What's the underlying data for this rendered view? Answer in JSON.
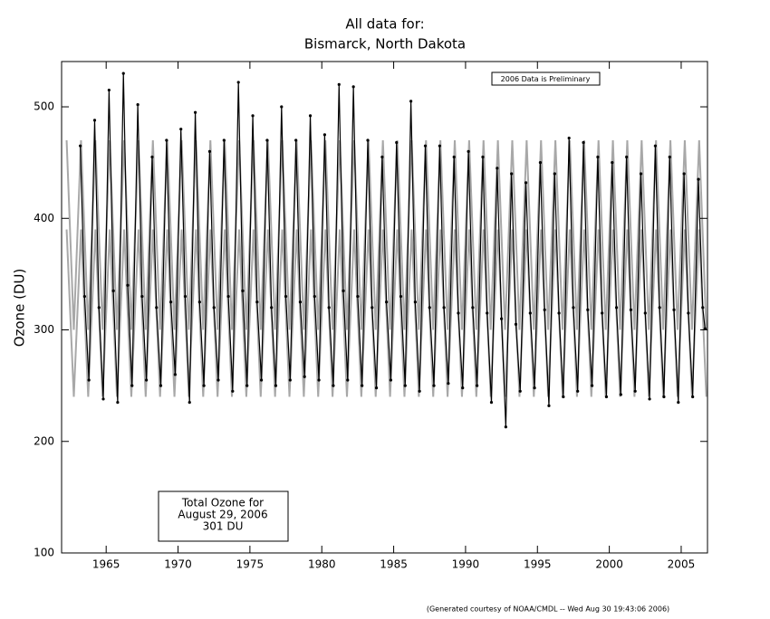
{
  "chart_data": {
    "type": "line",
    "title": "All data for:",
    "subtitle": "Bismarck, North Dakota",
    "y_label": "Ozone (DU)",
    "annotation": "2006 Data is Preliminary",
    "info_box": [
      "Total Ozone for",
      "August 29, 2006",
      "301 DU"
    ],
    "footer": "(Generated courtesy of NOAA/CMDL -- Wed Aug 30 19:43:06 2006)",
    "xlim": [
      1961.9,
      2006.83
    ],
    "ylim": [
      100,
      540.6
    ],
    "xticks": [
      1965,
      1970,
      1975,
      1980,
      1985,
      1990,
      1995,
      2000,
      2005
    ],
    "yticks": [
      100,
      200,
      300,
      400,
      500
    ],
    "grid": false,
    "series": [
      {
        "name": "Climatology upper",
        "color": "#a8a8a8",
        "markers": false,
        "x": [
          1962.25,
          1962.75,
          1963.25,
          1963.75,
          1964.25,
          1964.75,
          1965.25,
          1965.75,
          1966.25,
          1966.75,
          1967.25,
          1967.75,
          1968.25,
          1968.75,
          1969.25,
          1969.75,
          1970.25,
          1970.75,
          1971.25,
          1971.75,
          1972.25,
          1972.75,
          1973.25,
          1973.75,
          1974.25,
          1974.75,
          1975.25,
          1975.75,
          1976.25,
          1976.75,
          1977.25,
          1977.75,
          1978.25,
          1978.75,
          1979.25,
          1979.75,
          1980.25,
          1980.75,
          1981.25,
          1981.75,
          1982.25,
          1982.75,
          1983.25,
          1983.75,
          1984.25,
          1984.75,
          1985.25,
          1985.75,
          1986.25,
          1986.75,
          1987.25,
          1987.75,
          1988.25,
          1988.75,
          1989.25,
          1989.75,
          1990.25,
          1990.75,
          1991.25,
          1991.75,
          1992.25,
          1992.75,
          1993.25,
          1993.75,
          1994.25,
          1994.75,
          1995.25,
          1995.75,
          1996.25,
          1996.75,
          1997.25,
          1997.75,
          1998.25,
          1998.75,
          1999.25,
          1999.75,
          2000.25,
          2000.75,
          2001.25,
          2001.75,
          2002.25,
          2002.75,
          2003.25,
          2003.75,
          2004.25,
          2004.75,
          2005.25,
          2005.75,
          2006.25,
          2006.75
        ],
        "values": [
          470,
          300,
          470,
          300,
          470,
          300,
          470,
          300,
          470,
          300,
          470,
          300,
          470,
          300,
          470,
          300,
          470,
          300,
          470,
          300,
          470,
          300,
          470,
          300,
          470,
          300,
          470,
          300,
          470,
          300,
          470,
          300,
          470,
          300,
          470,
          300,
          470,
          300,
          470,
          300,
          470,
          300,
          470,
          300,
          470,
          300,
          470,
          300,
          470,
          300,
          470,
          300,
          470,
          300,
          470,
          300,
          470,
          300,
          470,
          300,
          470,
          300,
          470,
          300,
          470,
          300,
          470,
          300,
          470,
          300,
          470,
          300,
          470,
          300,
          470,
          300,
          470,
          300,
          470,
          300,
          470,
          300,
          470,
          300,
          470,
          300,
          470,
          300,
          470,
          300
        ]
      },
      {
        "name": "Climatology lower",
        "color": "#a8a8a8",
        "markers": false,
        "x": [
          1962.25,
          1962.75,
          1963.25,
          1963.75,
          1964.25,
          1964.75,
          1965.25,
          1965.75,
          1966.25,
          1966.75,
          1967.25,
          1967.75,
          1968.25,
          1968.75,
          1969.25,
          1969.75,
          1970.25,
          1970.75,
          1971.25,
          1971.75,
          1972.25,
          1972.75,
          1973.25,
          1973.75,
          1974.25,
          1974.75,
          1975.25,
          1975.75,
          1976.25,
          1976.75,
          1977.25,
          1977.75,
          1978.25,
          1978.75,
          1979.25,
          1979.75,
          1980.25,
          1980.75,
          1981.25,
          1981.75,
          1982.25,
          1982.75,
          1983.25,
          1983.75,
          1984.25,
          1984.75,
          1985.25,
          1985.75,
          1986.25,
          1986.75,
          1987.25,
          1987.75,
          1988.25,
          1988.75,
          1989.25,
          1989.75,
          1990.25,
          1990.75,
          1991.25,
          1991.75,
          1992.25,
          1992.75,
          1993.25,
          1993.75,
          1994.25,
          1994.75,
          1995.25,
          1995.75,
          1996.25,
          1996.75,
          1997.25,
          1997.75,
          1998.25,
          1998.75,
          1999.25,
          1999.75,
          2000.25,
          2000.75,
          2001.25,
          2001.75,
          2002.25,
          2002.75,
          2003.25,
          2003.75,
          2004.25,
          2004.75,
          2005.25,
          2005.75,
          2006.25,
          2006.75
        ],
        "values": [
          390,
          240,
          390,
          240,
          390,
          240,
          390,
          240,
          390,
          240,
          390,
          240,
          390,
          240,
          390,
          240,
          390,
          240,
          390,
          240,
          390,
          240,
          390,
          240,
          390,
          240,
          390,
          240,
          390,
          240,
          390,
          240,
          390,
          240,
          390,
          240,
          390,
          240,
          390,
          240,
          390,
          240,
          390,
          240,
          390,
          240,
          390,
          240,
          390,
          240,
          390,
          240,
          390,
          240,
          390,
          240,
          390,
          240,
          390,
          240,
          390,
          240,
          390,
          240,
          390,
          240,
          390,
          240,
          390,
          240,
          390,
          240,
          390,
          240,
          390,
          240,
          390,
          240,
          390,
          240,
          390,
          240,
          390,
          240,
          390,
          240,
          390,
          240,
          390,
          240
        ]
      },
      {
        "name": "Total ozone",
        "color": "#000000",
        "markers": true,
        "x": [
          1963.2,
          1963.5,
          1963.8,
          1964.2,
          1964.5,
          1964.8,
          1965.2,
          1965.5,
          1965.8,
          1966.2,
          1966.5,
          1966.8,
          1967.2,
          1967.5,
          1967.8,
          1968.2,
          1968.5,
          1968.8,
          1969.2,
          1969.5,
          1969.8,
          1970.2,
          1970.5,
          1970.8,
          1971.2,
          1971.5,
          1971.8,
          1972.2,
          1972.5,
          1972.8,
          1973.2,
          1973.5,
          1973.8,
          1974.2,
          1974.5,
          1974.8,
          1975.2,
          1975.5,
          1975.8,
          1976.2,
          1976.5,
          1976.8,
          1977.2,
          1977.5,
          1977.8,
          1978.2,
          1978.5,
          1978.8,
          1979.2,
          1979.5,
          1979.8,
          1980.2,
          1980.5,
          1980.8,
          1981.2,
          1981.5,
          1981.8,
          1982.2,
          1982.5,
          1982.8,
          1983.2,
          1983.5,
          1983.8,
          1984.2,
          1984.5,
          1984.8,
          1985.2,
          1985.5,
          1985.8,
          1986.2,
          1986.5,
          1986.8,
          1987.2,
          1987.5,
          1987.8,
          1988.2,
          1988.5,
          1988.8,
          1989.2,
          1989.5,
          1989.8,
          1990.2,
          1990.5,
          1990.8,
          1991.2,
          1991.5,
          1991.8,
          1992.2,
          1992.5,
          1992.8,
          1993.2,
          1993.5,
          1993.8,
          1994.2,
          1994.5,
          1994.8,
          1995.2,
          1995.5,
          1995.8,
          1996.2,
          1996.5,
          1996.8,
          1997.2,
          1997.5,
          1997.8,
          1998.2,
          1998.5,
          1998.8,
          1999.2,
          1999.5,
          1999.8,
          2000.2,
          2000.5,
          2000.8,
          2001.2,
          2001.5,
          2001.8,
          2002.2,
          2002.5,
          2002.8,
          2003.2,
          2003.5,
          2003.8,
          2004.2,
          2004.5,
          2004.8,
          2005.2,
          2005.5,
          2005.8,
          2006.2,
          2006.5,
          2006.66
        ],
        "values": [
          465,
          330,
          255,
          488,
          320,
          238,
          515,
          335,
          235,
          530,
          340,
          250,
          502,
          330,
          255,
          455,
          320,
          250,
          470,
          325,
          260,
          480,
          330,
          235,
          495,
          325,
          250,
          460,
          320,
          255,
          470,
          330,
          245,
          522,
          335,
          250,
          492,
          325,
          255,
          470,
          320,
          250,
          500,
          330,
          255,
          470,
          325,
          258,
          492,
          330,
          255,
          475,
          320,
          250,
          520,
          335,
          255,
          518,
          330,
          250,
          470,
          320,
          248,
          455,
          325,
          255,
          468,
          330,
          250,
          505,
          325,
          245,
          465,
          320,
          250,
          465,
          320,
          252,
          455,
          315,
          248,
          460,
          320,
          250,
          455,
          315,
          235,
          445,
          310,
          213,
          440,
          305,
          245,
          432,
          315,
          248,
          450,
          318,
          232,
          440,
          315,
          240,
          472,
          320,
          245,
          468,
          318,
          250,
          455,
          315,
          240,
          450,
          320,
          242,
          455,
          318,
          245,
          440,
          315,
          238,
          465,
          320,
          240,
          455,
          318,
          235,
          440,
          315,
          240,
          435,
          320,
          301
        ]
      }
    ]
  }
}
